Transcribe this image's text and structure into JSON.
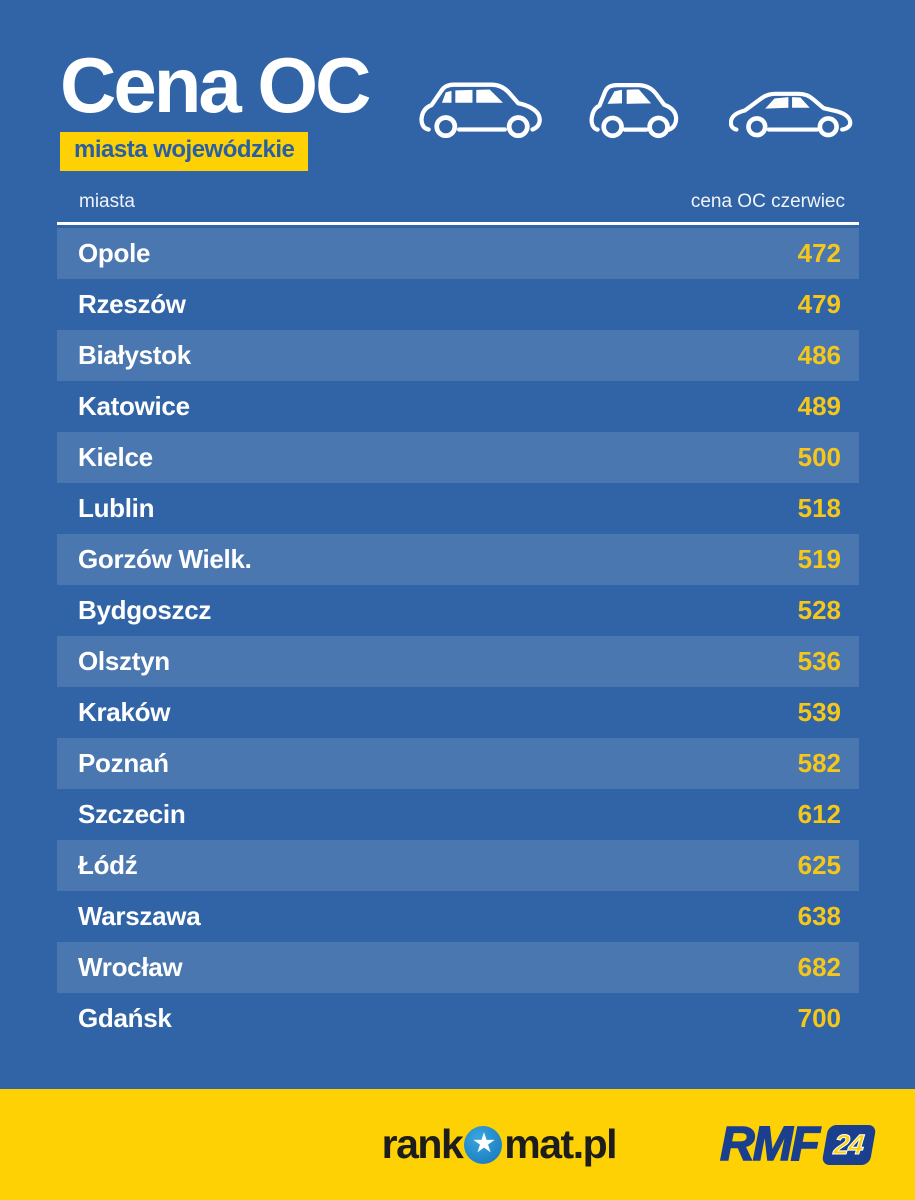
{
  "header": {
    "title": "Cena OC",
    "badge": "miasta wojewódzkie"
  },
  "icons": {
    "cars": [
      "hatchback-car-icon",
      "city-car-icon",
      "sedan-car-icon"
    ]
  },
  "table": {
    "columns": [
      "miasta",
      "cena OC czerwiec"
    ]
  },
  "chart_data": {
    "type": "table",
    "title": "Cena OC",
    "subtitle": "miasta wojewódzkie",
    "columns": [
      "miasta",
      "cena OC czerwiec"
    ],
    "categories": [
      "Opole",
      "Rzeszów",
      "Białystok",
      "Katowice",
      "Kielce",
      "Lublin",
      "Gorzów Wielk.",
      "Bydgoszcz",
      "Olsztyn",
      "Kraków",
      "Poznań",
      "Szczecin",
      "Łódź",
      "Warszawa",
      "Wrocław",
      "Gdańsk"
    ],
    "values": [
      472,
      479,
      486,
      489,
      500,
      518,
      519,
      528,
      536,
      539,
      582,
      612,
      625,
      638,
      682,
      700
    ]
  },
  "footer": {
    "rankomat_prefix": "rank",
    "rankomat_star": "★",
    "rankomat_suffix": "mat.pl",
    "rmf_text": "RMF",
    "rmf_badge": "24"
  },
  "colors": {
    "background": "#3164a6",
    "row_stripe": "#4a77af",
    "accent_yellow": "#fdd104",
    "value_yellow": "#f5c71b",
    "badge_text_blue": "#2b5fa3",
    "rmf_blue": "#1a3f8f",
    "rankomat_text": "#1d1d1b",
    "white": "#ffffff"
  }
}
